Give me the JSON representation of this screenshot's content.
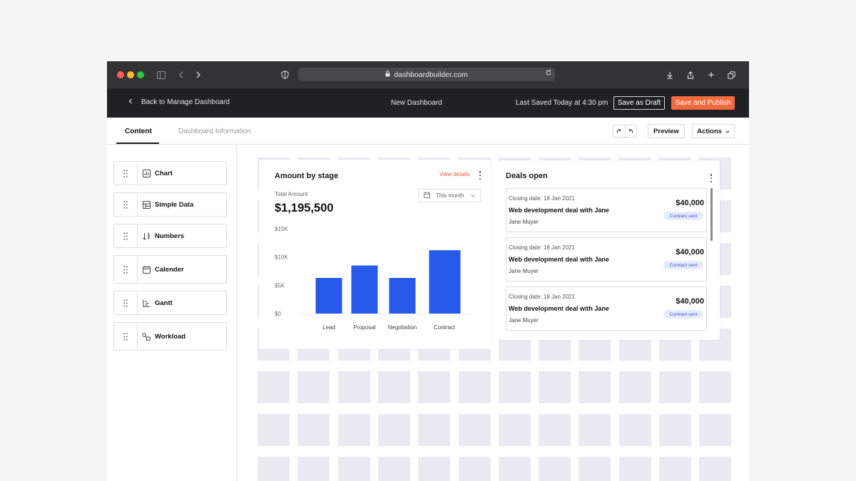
{
  "browser": {
    "url": "dashboardbuilder.com"
  },
  "header": {
    "back_label": "Back to Manage Dashboard",
    "title": "New Dashboard",
    "last_saved": "Last Saved Today at 4:30 pm",
    "save_draft": "Save as Draft",
    "save_publish": "Save and Publish",
    "colors": {
      "publish": "#f26a3d",
      "bar": "#1f2124"
    }
  },
  "tabs": [
    {
      "label": "Content",
      "active": true
    },
    {
      "label": "Dashboard Information",
      "active": false
    }
  ],
  "toolbar": {
    "preview": "Preview",
    "actions": "Actions"
  },
  "sidebar": {
    "items": [
      {
        "label": "Chart",
        "icon": "chart-icon"
      },
      {
        "label": "Simple Data",
        "icon": "table-icon"
      },
      {
        "label": "Numbers",
        "icon": "sort-numbers-icon"
      },
      {
        "label": "Calender",
        "icon": "calendar-icon"
      },
      {
        "label": "Gantt",
        "icon": "gantt-icon"
      },
      {
        "label": "Workload",
        "icon": "workload-icon"
      }
    ]
  },
  "amount_card": {
    "title": "Amount by stage",
    "view_details": "View details",
    "total_label": "Total Amount",
    "total_value": "$1,195,500",
    "period": "This month"
  },
  "chart_data": {
    "type": "bar",
    "categories": [
      "Lead",
      "Proposal",
      "Negotiation",
      "Contract"
    ],
    "values": [
      6300,
      8500,
      6300,
      11200
    ],
    "ylim": [
      0,
      15000
    ],
    "yticks": [
      {
        "value": 0,
        "label": "$0"
      },
      {
        "value": 5000,
        "label": "$5K"
      },
      {
        "value": 10000,
        "label": "$10K"
      },
      {
        "value": 15000,
        "label": "$15K"
      }
    ],
    "grid": false,
    "color": "#2759ea"
  },
  "deals_card": {
    "title": "Deals open",
    "items": [
      {
        "closing": "Closing date: 18 Jan 2021",
        "name": "Web development deal with Jane",
        "owner": "Jane Muyer",
        "amount": "$40,000",
        "status": "Contract sent"
      },
      {
        "closing": "Closing date: 18 Jan 2021",
        "name": "Web development deal with Jane",
        "owner": "Jane Muyer",
        "amount": "$40,000",
        "status": "Contract sent"
      },
      {
        "closing": "Closing date: 18 Jan 2021",
        "name": "Web development deal with Jane",
        "owner": "Jane Muyer",
        "amount": "$40,000",
        "status": "Contract sent"
      }
    ]
  }
}
